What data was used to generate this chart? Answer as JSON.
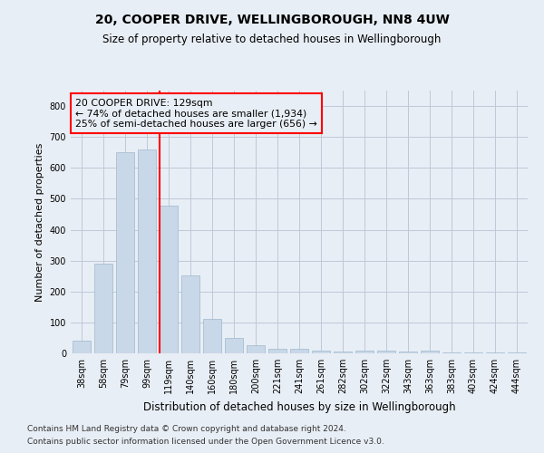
{
  "title": "20, COOPER DRIVE, WELLINGBOROUGH, NN8 4UW",
  "subtitle": "Size of property relative to detached houses in Wellingborough",
  "xlabel": "Distribution of detached houses by size in Wellingborough",
  "ylabel": "Number of detached properties",
  "categories": [
    "38sqm",
    "58sqm",
    "79sqm",
    "99sqm",
    "119sqm",
    "140sqm",
    "160sqm",
    "180sqm",
    "200sqm",
    "221sqm",
    "241sqm",
    "261sqm",
    "282sqm",
    "302sqm",
    "322sqm",
    "343sqm",
    "363sqm",
    "383sqm",
    "403sqm",
    "424sqm",
    "444sqm"
  ],
  "values": [
    42,
    291,
    650,
    660,
    478,
    251,
    112,
    50,
    25,
    15,
    14,
    8,
    6,
    8,
    8,
    5,
    9,
    4,
    4,
    4,
    2
  ],
  "bar_color": "#c8d8e8",
  "bar_edgecolor": "#a0b8cc",
  "grid_color": "#c0c8d8",
  "background_color": "#e8eef5",
  "red_line_bin_index": 4,
  "annotation_text1": "20 COOPER DRIVE: 129sqm",
  "annotation_text2": "← 74% of detached houses are smaller (1,934)",
  "annotation_text3": "25% of semi-detached houses are larger (656) →",
  "footnote1": "Contains HM Land Registry data © Crown copyright and database right 2024.",
  "footnote2": "Contains public sector information licensed under the Open Government Licence v3.0.",
  "ylim": [
    0,
    850
  ],
  "yticks": [
    0,
    100,
    200,
    300,
    400,
    500,
    600,
    700,
    800
  ],
  "title_fontsize": 10,
  "subtitle_fontsize": 8.5,
  "tick_fontsize": 7,
  "ylabel_fontsize": 8,
  "xlabel_fontsize": 8.5,
  "footnote_fontsize": 6.5
}
